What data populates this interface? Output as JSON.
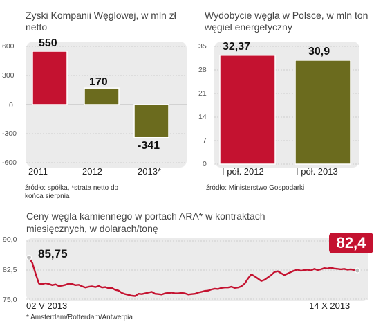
{
  "chart_data": [
    {
      "type": "bar",
      "title": "Zyski Kompanii Węglowej, w mln zł netto",
      "categories": [
        "2011",
        "2012",
        "2013*"
      ],
      "values": [
        550,
        170,
        -341
      ],
      "value_labels": [
        "550",
        "170",
        "-341"
      ],
      "yticks": [
        "600",
        "300",
        "0",
        "-300",
        "-600"
      ],
      "ylim": [
        -600,
        600
      ],
      "colors": [
        "#c41230",
        "#6b6b1e",
        "#6b6b1e"
      ],
      "source": "źródło: spółka, *strata netto do końca sierpnia",
      "source_lines": [
        "źródło: spółka, *strata netto do",
        "końca sierpnia"
      ]
    },
    {
      "type": "bar",
      "title": "Wydobycie węgla w Polsce, w mln ton węgiel energetyczny",
      "categories": [
        "I pół. 2012",
        "I pół. 2013"
      ],
      "values": [
        32.37,
        30.9
      ],
      "value_labels": [
        "32,37",
        "30,9"
      ],
      "yticks": [
        "35",
        "28",
        "21",
        "14",
        "7",
        "0"
      ],
      "ylim": [
        0,
        35
      ],
      "colors": [
        "#c41230",
        "#6b6b1e"
      ],
      "source": "źródło: Ministerstwo Gospodarki"
    },
    {
      "type": "line",
      "title": "Ceny węgla kamiennego w portach ARA* w kontraktach miesięcznych, w dolarach/tonę",
      "x_start": "02 V 2013",
      "x_end": "14 X 2013",
      "yticks": [
        "90,0",
        "82,5",
        "75,0"
      ],
      "ylim": [
        75,
        90
      ],
      "start_label": "85,75",
      "end_label": "82,4",
      "color": "#c41230",
      "values": [
        85.75,
        84.3,
        81.5,
        79.0,
        78.9,
        79.1,
        78.9,
        78.6,
        78.8,
        78.4,
        78.5,
        78.7,
        79.0,
        78.9,
        78.6,
        78.7,
        78.3,
        78.0,
        78.2,
        78.3,
        78.1,
        78.4,
        78.0,
        78.1,
        77.8,
        77.9,
        77.4,
        77.2,
        76.6,
        76.3,
        76.1,
        75.9,
        75.8,
        76.4,
        76.3,
        76.5,
        76.7,
        76.9,
        76.4,
        76.3,
        76.2,
        76.5,
        76.6,
        76.7,
        76.5,
        76.5,
        76.6,
        76.5,
        76.2,
        76.3,
        76.4,
        76.7,
        76.9,
        77.1,
        77.2,
        77.5,
        77.7,
        77.6,
        77.9,
        78.0,
        78.0,
        78.2,
        77.9,
        78.0,
        78.3,
        79.0,
        80.3,
        81.4,
        80.9,
        80.3,
        79.7,
        80.0,
        80.6,
        81.2,
        82.0,
        82.2,
        81.7,
        81.2,
        81.6,
        82.0,
        82.4,
        82.6,
        82.3,
        82.5,
        82.6,
        82.4,
        82.8,
        82.5,
        82.7,
        83.0,
        82.9,
        83.1,
        82.9,
        82.8,
        82.7,
        82.8,
        82.6,
        82.7,
        82.5,
        82.4
      ],
      "footnote": "* Amsterdam/Rotterdam/Antwerpia"
    }
  ]
}
